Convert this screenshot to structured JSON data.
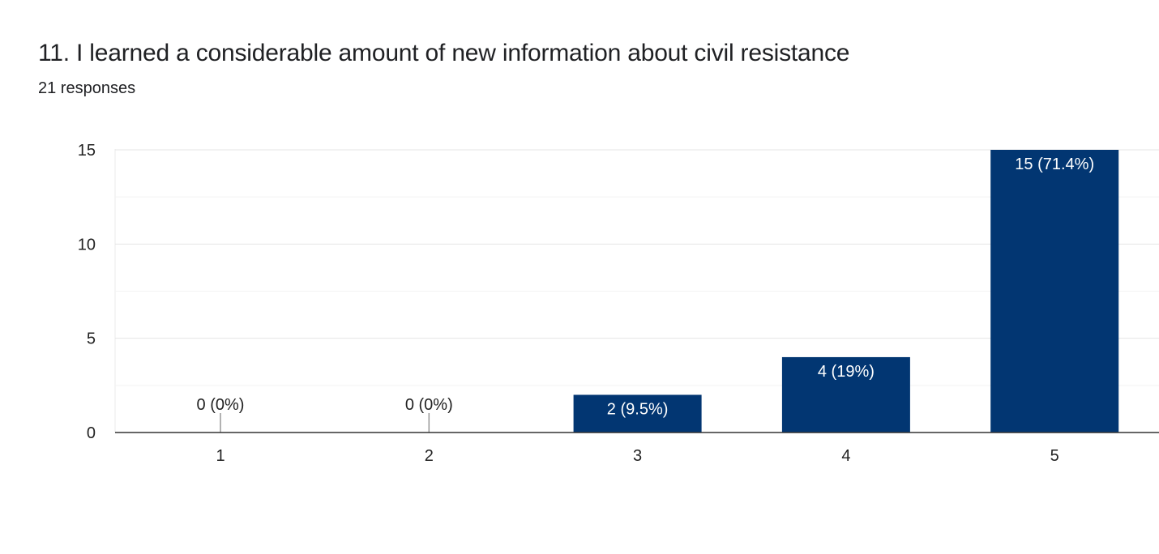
{
  "question": {
    "title": "11. I learned a considerable amount of new information about civil resistance",
    "responses": "21 responses"
  },
  "chart_data": {
    "type": "bar",
    "categories": [
      "1",
      "2",
      "3",
      "4",
      "5"
    ],
    "values": [
      0,
      0,
      2,
      4,
      15
    ],
    "labels": [
      "0 (0%)",
      "0 (0%)",
      "2 (9.5%)",
      "4 (19%)",
      "15 (71.4%)"
    ],
    "ylim": [
      0,
      15
    ],
    "yticks": [
      "0",
      "5",
      "10",
      "15"
    ],
    "ytick_values": [
      0,
      5,
      10,
      15
    ],
    "grid": true,
    "bar_color": "#023672",
    "label_inside_color": "#ffffff",
    "label_outside_color": "#222222"
  }
}
